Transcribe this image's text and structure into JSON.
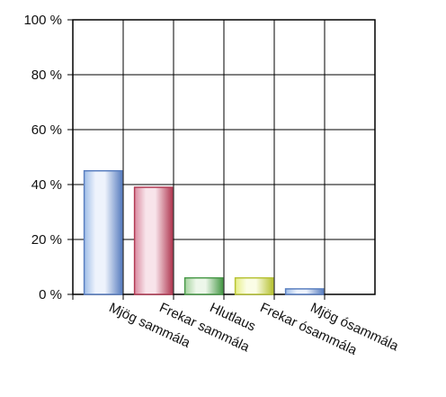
{
  "chart_data": {
    "type": "bar",
    "categories": [
      "Mjög sammála",
      "Frekar sammála",
      "Hlutlaus",
      "Frekar ósammála",
      "Mjög ósammála"
    ],
    "values": [
      45,
      39,
      6,
      6,
      2
    ],
    "ylim": [
      0,
      100
    ],
    "yticks": [
      "0 %",
      "20 %",
      "40 %",
      "60 %",
      "80 %",
      "100 %"
    ],
    "grid": true,
    "legend": "none",
    "bar_colors": [
      {
        "edge": "#5a7fc0",
        "light": "#eef3fc",
        "mid": "#9fbde8"
      },
      {
        "edge": "#b23c55",
        "light": "#f8e4ea",
        "mid": "#d98aa0"
      },
      {
        "edge": "#4a9a4a",
        "light": "#edf7ea",
        "mid": "#a3d29c"
      },
      {
        "edge": "#b7c236",
        "light": "#fbfde6",
        "mid": "#e6ee84"
      },
      {
        "edge": "#5a7fc0",
        "light": "#eef3fc",
        "mid": "#9fbde8"
      }
    ]
  }
}
